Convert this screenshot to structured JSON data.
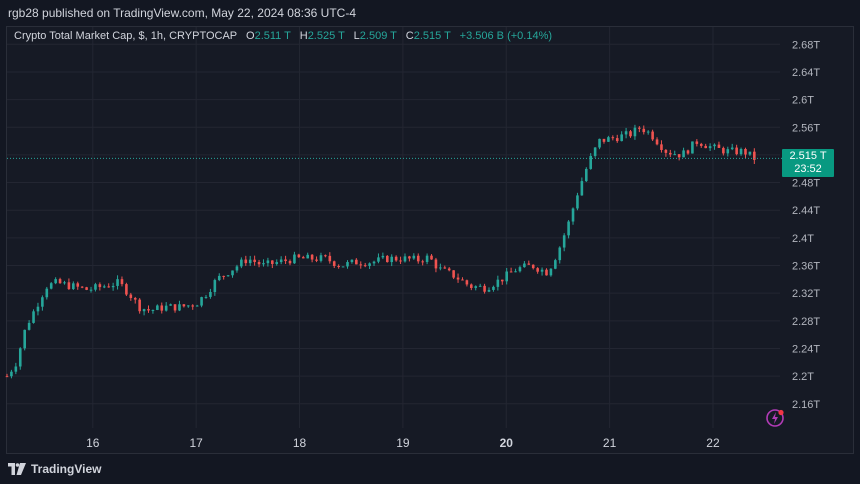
{
  "header": {
    "publisher": "rgb28 published on TradingView.com, May 22, 2024 08:36 UTC-4"
  },
  "legend": {
    "symbol": "Crypto Total Market Cap, $, 1h, CRYPTOCAP",
    "o_label": "O",
    "o_value": "2.511 T",
    "h_label": "H",
    "h_value": "2.525 T",
    "l_label": "L",
    "l_value": "2.509 T",
    "c_label": "C",
    "c_value": "2.515 T",
    "change": "+3.506 B (+0.14%)"
  },
  "price_tag": {
    "price": "2.515 T",
    "countdown": "23:52"
  },
  "footer": {
    "brand": "TradingView"
  },
  "colors": {
    "up": "#26a69a",
    "down": "#ef5350",
    "grid": "#232632",
    "axis_text": "#b2b5be",
    "background": "#161a25"
  },
  "icons": [
    "tradingview-logo-icon",
    "spark-icon"
  ],
  "chart_data": {
    "type": "candlestick",
    "y_unit": "T",
    "y_ticks": [
      2.16,
      2.2,
      2.24,
      2.28,
      2.32,
      2.36,
      2.4,
      2.44,
      2.48,
      2.52,
      2.56,
      2.6,
      2.64,
      2.68
    ],
    "y_tick_labels": [
      "2.16T",
      "2.2T",
      "2.24T",
      "2.28T",
      "2.32T",
      "2.36T",
      "2.4T",
      "2.44T",
      "2.48T",
      "2.52T",
      "2.56T",
      "2.6T",
      "2.64T",
      "2.68T"
    ],
    "ylim": [
      2.125,
      2.705
    ],
    "x_ticks": [
      16,
      17,
      18,
      19,
      20,
      21,
      22
    ],
    "x_tick_labels": [
      "16",
      "17",
      "18",
      "19",
      "20",
      "21",
      "22"
    ],
    "x_bold": [
      20
    ],
    "xlim": [
      15.17,
      22.6
    ],
    "last_price": 2.515,
    "grid": true,
    "series": [
      {
        "name": "Crypto Total Market Cap",
        "close_points": [
          [
            15.17,
            2.2
          ],
          [
            15.26,
            2.22
          ],
          [
            15.35,
            2.27
          ],
          [
            15.45,
            2.3
          ],
          [
            15.55,
            2.33
          ],
          [
            15.65,
            2.335
          ],
          [
            15.8,
            2.33
          ],
          [
            15.95,
            2.325
          ],
          [
            16.1,
            2.33
          ],
          [
            16.25,
            2.335
          ],
          [
            16.35,
            2.32
          ],
          [
            16.45,
            2.3
          ],
          [
            16.55,
            2.295
          ],
          [
            16.7,
            2.3
          ],
          [
            16.85,
            2.3
          ],
          [
            17.0,
            2.305
          ],
          [
            17.1,
            2.32
          ],
          [
            17.2,
            2.34
          ],
          [
            17.35,
            2.355
          ],
          [
            17.5,
            2.37
          ],
          [
            17.65,
            2.36
          ],
          [
            17.8,
            2.365
          ],
          [
            17.95,
            2.37
          ],
          [
            18.1,
            2.37
          ],
          [
            18.25,
            2.37
          ],
          [
            18.4,
            2.36
          ],
          [
            18.55,
            2.365
          ],
          [
            18.7,
            2.365
          ],
          [
            18.85,
            2.37
          ],
          [
            19.0,
            2.37
          ],
          [
            19.15,
            2.368
          ],
          [
            19.25,
            2.372
          ],
          [
            19.35,
            2.355
          ],
          [
            19.5,
            2.345
          ],
          [
            19.65,
            2.33
          ],
          [
            19.8,
            2.328
          ],
          [
            19.95,
            2.34
          ],
          [
            20.1,
            2.355
          ],
          [
            20.25,
            2.36
          ],
          [
            20.4,
            2.35
          ],
          [
            20.5,
            2.38
          ],
          [
            20.6,
            2.42
          ],
          [
            20.7,
            2.47
          ],
          [
            20.8,
            2.51
          ],
          [
            20.9,
            2.54
          ],
          [
            21.05,
            2.545
          ],
          [
            21.2,
            2.55
          ],
          [
            21.3,
            2.56
          ],
          [
            21.4,
            2.55
          ],
          [
            21.55,
            2.525
          ],
          [
            21.7,
            2.52
          ],
          [
            21.85,
            2.54
          ],
          [
            22.0,
            2.53
          ],
          [
            22.15,
            2.525
          ],
          [
            22.3,
            2.525
          ],
          [
            22.4,
            2.515
          ]
        ]
      }
    ]
  }
}
